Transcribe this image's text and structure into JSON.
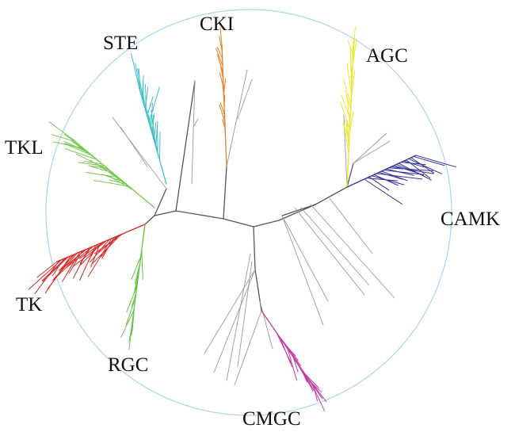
{
  "diagram": {
    "type": "radial-phylogenetic-tree",
    "boundary_color": "#a9d4ec",
    "trunk_color": "#555555",
    "unlabeled_branch_color": "#9a9a9a",
    "groups": [
      {
        "id": "ste",
        "label": "STE",
        "color": "#40bfcc"
      },
      {
        "id": "cki",
        "label": "CKI",
        "color": "#e87e23"
      },
      {
        "id": "agc",
        "label": "AGC",
        "color": "#e8e82a"
      },
      {
        "id": "tkl",
        "label": "TKL",
        "color": "#74c94d"
      },
      {
        "id": "camk",
        "label": "CAMK",
        "color": "#33339a"
      },
      {
        "id": "tk",
        "label": "TK",
        "color": "#d42a2a"
      },
      {
        "id": "rgc",
        "label": "RGC",
        "color": "#66c04a"
      },
      {
        "id": "cmgc",
        "label": "CMGC",
        "color": "#c13aa6"
      }
    ]
  }
}
